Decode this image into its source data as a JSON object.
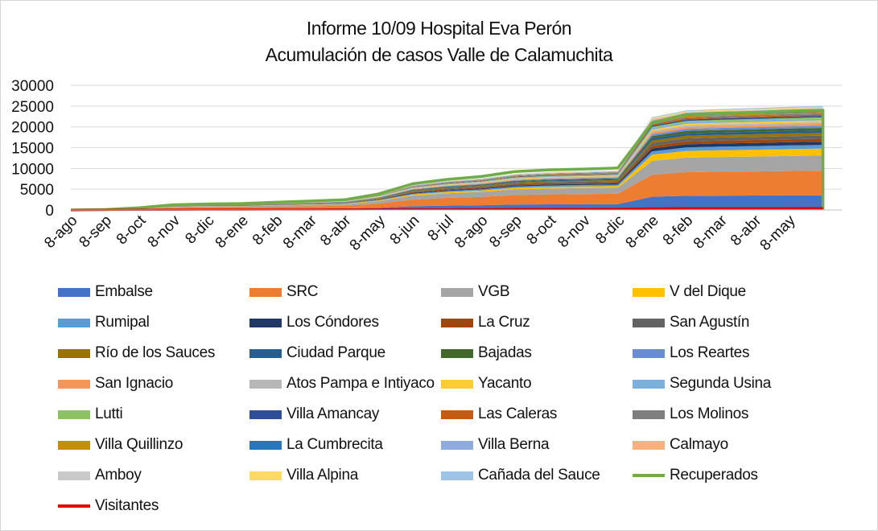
{
  "chart_data": {
    "type": "area",
    "stacked": true,
    "title": "Informe 10/09 Hospital Eva Perón",
    "subtitle": "Acumulación de casos Valle de Calamuchita",
    "xlabel": "",
    "ylabel": "",
    "ylim": [
      0,
      30000
    ],
    "yticks": [
      "0",
      "5000",
      "10000",
      "15000",
      "20000",
      "25000",
      "30000"
    ],
    "x_tick_labels": [
      "8-ago",
      "8-sep",
      "8-oct",
      "8-nov",
      "8-dic",
      "8-ene",
      "8-feb",
      "8-mar",
      "8-abr",
      "8-may",
      "8-jun",
      "8-jul",
      "8-ago",
      "8-sep",
      "8-oct",
      "8-nov",
      "8-dic",
      "8-ene",
      "8-feb",
      "8-mar",
      "8-abr",
      "8-may"
    ],
    "x_month_index": [
      0,
      1,
      2,
      3,
      4,
      5,
      6,
      7,
      8,
      9,
      10,
      11,
      12,
      13,
      14,
      15,
      16,
      17,
      18,
      19,
      20,
      21,
      22
    ],
    "area_total_estimate": [
      0,
      100,
      600,
      1300,
      1500,
      1600,
      1900,
      2200,
      2500,
      3900,
      6400,
      7400,
      8100,
      9300,
      9700,
      9900,
      10200,
      21500,
      23000,
      23300,
      23500,
      23800,
      23900
    ],
    "series": [
      {
        "name": "Embalse",
        "kind": "area",
        "color": "#4472c4",
        "values": [
          0,
          20,
          100,
          200,
          250,
          270,
          300,
          350,
          380,
          550,
          900,
          1050,
          1150,
          1300,
          1350,
          1380,
          1400,
          3200,
          3400,
          3450,
          3480,
          3520,
          3550
        ]
      },
      {
        "name": "SRC",
        "kind": "area",
        "color": "#ed7d31",
        "values": [
          0,
          25,
          160,
          330,
          380,
          400,
          470,
          550,
          620,
          980,
          1600,
          1850,
          2000,
          2300,
          2400,
          2450,
          2500,
          5300,
          5700,
          5750,
          5800,
          5850,
          5900
        ]
      },
      {
        "name": "VGB",
        "kind": "area",
        "color": "#a5a5a5",
        "values": [
          0,
          15,
          90,
          200,
          230,
          240,
          290,
          330,
          380,
          590,
          950,
          1100,
          1200,
          1350,
          1400,
          1430,
          1450,
          3300,
          3500,
          3550,
          3580,
          3620,
          3650
        ]
      },
      {
        "name": "V del Dique",
        "kind": "area",
        "color": "#ffc000",
        "values": [
          0,
          5,
          25,
          50,
          60,
          65,
          75,
          85,
          100,
          160,
          260,
          300,
          320,
          370,
          390,
          400,
          410,
          1500,
          1600,
          1620,
          1630,
          1650,
          1660
        ]
      },
      {
        "name": "Rumipal",
        "kind": "area",
        "color": "#5b9bd5",
        "values": [
          0,
          5,
          20,
          45,
          50,
          55,
          65,
          75,
          85,
          130,
          220,
          260,
          280,
          330,
          345,
          350,
          360,
          800,
          850,
          860,
          870,
          880,
          885
        ]
      },
      {
        "name": "Los Cóndores",
        "kind": "area",
        "color": "#203864",
        "values": [
          0,
          3,
          15,
          35,
          40,
          42,
          50,
          58,
          65,
          100,
          170,
          200,
          220,
          250,
          265,
          270,
          280,
          700,
          750,
          760,
          765,
          770,
          775
        ]
      },
      {
        "name": "La Cruz",
        "kind": "area",
        "color": "#9e480e",
        "values": [
          0,
          3,
          15,
          35,
          40,
          42,
          50,
          58,
          65,
          100,
          170,
          200,
          220,
          250,
          265,
          270,
          280,
          650,
          700,
          710,
          715,
          720,
          725
        ]
      },
      {
        "name": "San Agustín",
        "kind": "area",
        "color": "#636363",
        "values": [
          0,
          3,
          15,
          35,
          40,
          42,
          50,
          58,
          65,
          100,
          170,
          200,
          220,
          250,
          265,
          270,
          280,
          650,
          700,
          710,
          715,
          720,
          725
        ]
      },
      {
        "name": "Río de los Sauces",
        "kind": "area",
        "color": "#997300",
        "values": [
          0,
          3,
          15,
          30,
          35,
          38,
          45,
          50,
          55,
          90,
          150,
          170,
          190,
          215,
          225,
          230,
          235,
          600,
          650,
          660,
          665,
          670,
          675
        ]
      },
      {
        "name": "Ciudad Parque",
        "kind": "area",
        "color": "#255e91",
        "values": [
          0,
          2,
          12,
          25,
          30,
          32,
          38,
          43,
          48,
          75,
          125,
          145,
          160,
          185,
          195,
          200,
          205,
          550,
          600,
          610,
          615,
          620,
          625
        ]
      },
      {
        "name": "Bajadas",
        "kind": "area",
        "color": "#43682b",
        "values": [
          0,
          2,
          12,
          25,
          30,
          32,
          38,
          43,
          48,
          75,
          125,
          145,
          160,
          185,
          195,
          200,
          205,
          500,
          550,
          560,
          565,
          570,
          575
        ]
      },
      {
        "name": "Los Reartes",
        "kind": "area",
        "color": "#698ed0",
        "values": [
          0,
          2,
          12,
          25,
          30,
          32,
          38,
          43,
          48,
          75,
          125,
          145,
          160,
          185,
          195,
          200,
          205,
          450,
          500,
          510,
          515,
          520,
          525
        ]
      },
      {
        "name": "San Ignacio",
        "kind": "area",
        "color": "#f1975a",
        "values": [
          0,
          2,
          10,
          20,
          25,
          27,
          32,
          36,
          40,
          62,
          100,
          115,
          125,
          145,
          152,
          156,
          160,
          400,
          430,
          435,
          440,
          445,
          450
        ]
      },
      {
        "name": "Atos Pampa e Intiyaco",
        "kind": "area",
        "color": "#b7b7b7",
        "values": [
          0,
          2,
          10,
          20,
          25,
          27,
          32,
          36,
          40,
          62,
          100,
          115,
          125,
          145,
          152,
          156,
          160,
          380,
          410,
          415,
          420,
          425,
          430
        ]
      },
      {
        "name": "Yacanto",
        "kind": "area",
        "color": "#ffcd33",
        "values": [
          0,
          2,
          10,
          20,
          25,
          27,
          32,
          36,
          40,
          62,
          100,
          115,
          125,
          145,
          152,
          156,
          160,
          360,
          390,
          395,
          400,
          405,
          410
        ]
      },
      {
        "name": "Segunda Usina",
        "kind": "area",
        "color": "#7cafdd",
        "values": [
          0,
          2,
          10,
          20,
          25,
          27,
          32,
          36,
          40,
          62,
          100,
          115,
          125,
          145,
          152,
          156,
          160,
          340,
          370,
          375,
          380,
          385,
          390
        ]
      },
      {
        "name": "Lutti",
        "kind": "area",
        "color": "#8cc168",
        "values": [
          0,
          1,
          8,
          15,
          18,
          20,
          24,
          27,
          30,
          47,
          76,
          88,
          96,
          110,
          116,
          118,
          122,
          300,
          330,
          335,
          340,
          345,
          350
        ]
      },
      {
        "name": "Villa Amancay",
        "kind": "area",
        "color": "#2e4f95",
        "values": [
          0,
          1,
          8,
          15,
          18,
          20,
          24,
          27,
          30,
          47,
          76,
          88,
          96,
          110,
          116,
          118,
          122,
          300,
          330,
          335,
          340,
          345,
          350
        ]
      },
      {
        "name": "Las Caleras",
        "kind": "area",
        "color": "#c55a11",
        "values": [
          0,
          1,
          8,
          15,
          18,
          20,
          24,
          27,
          30,
          47,
          76,
          88,
          96,
          110,
          116,
          118,
          122,
          280,
          300,
          305,
          310,
          315,
          320
        ]
      },
      {
        "name": "Los Molinos",
        "kind": "area",
        "color": "#7f7f7f",
        "values": [
          0,
          1,
          8,
          15,
          18,
          20,
          24,
          27,
          30,
          47,
          76,
          88,
          96,
          110,
          116,
          118,
          122,
          280,
          300,
          305,
          310,
          315,
          320
        ]
      },
      {
        "name": "Villa Quillinzo",
        "kind": "area",
        "color": "#bf9000",
        "values": [
          0,
          1,
          6,
          12,
          14,
          15,
          18,
          20,
          23,
          35,
          57,
          66,
          72,
          83,
          87,
          89,
          92,
          250,
          270,
          275,
          280,
          285,
          290
        ]
      },
      {
        "name": "La Cumbrecita",
        "kind": "area",
        "color": "#2e75b6",
        "values": [
          0,
          1,
          6,
          12,
          14,
          15,
          18,
          20,
          23,
          35,
          57,
          66,
          72,
          83,
          87,
          89,
          92,
          230,
          250,
          255,
          260,
          265,
          270
        ]
      },
      {
        "name": "Villa Berna",
        "kind": "area",
        "color": "#8faadc",
        "values": [
          0,
          1,
          6,
          12,
          14,
          15,
          18,
          20,
          23,
          35,
          57,
          66,
          72,
          83,
          87,
          89,
          92,
          210,
          230,
          235,
          240,
          245,
          250
        ]
      },
      {
        "name": "Calmayo",
        "kind": "area",
        "color": "#f4b183",
        "values": [
          0,
          1,
          5,
          10,
          12,
          13,
          15,
          17,
          19,
          30,
          48,
          55,
          60,
          69,
          72,
          74,
          77,
          200,
          220,
          225,
          230,
          235,
          240
        ]
      },
      {
        "name": "Amboy",
        "kind": "area",
        "color": "#c9c9c9",
        "values": [
          0,
          1,
          5,
          10,
          12,
          13,
          15,
          17,
          19,
          30,
          48,
          55,
          60,
          69,
          72,
          74,
          77,
          200,
          220,
          225,
          230,
          235,
          240
        ]
      },
      {
        "name": "Villa Alpina",
        "kind": "area",
        "color": "#ffd966",
        "values": [
          0,
          1,
          5,
          10,
          12,
          13,
          15,
          17,
          19,
          30,
          48,
          55,
          60,
          69,
          72,
          74,
          77,
          180,
          200,
          205,
          210,
          215,
          220
        ]
      },
      {
        "name": "Cañada del Sauce",
        "kind": "area",
        "color": "#9dc3e6",
        "values": [
          0,
          1,
          5,
          10,
          12,
          13,
          15,
          17,
          19,
          30,
          48,
          55,
          60,
          69,
          72,
          74,
          77,
          180,
          200,
          205,
          210,
          215,
          220
        ]
      },
      {
        "name": "Recuperados",
        "kind": "line",
        "color": "#70ad47",
        "values": [
          0,
          100,
          550,
          1250,
          1450,
          1550,
          1850,
          2150,
          2450,
          3850,
          6300,
          7350,
          8050,
          9250,
          9650,
          9850,
          10100,
          21000,
          23000,
          23300,
          23500,
          23800,
          24000
        ]
      },
      {
        "name": "Visitantes",
        "kind": "line",
        "color": "#e00000",
        "values": [
          0,
          20,
          40,
          60,
          70,
          80,
          90,
          100,
          110,
          130,
          160,
          180,
          200,
          230,
          250,
          260,
          280,
          380,
          420,
          430,
          440,
          450,
          460
        ]
      }
    ]
  }
}
